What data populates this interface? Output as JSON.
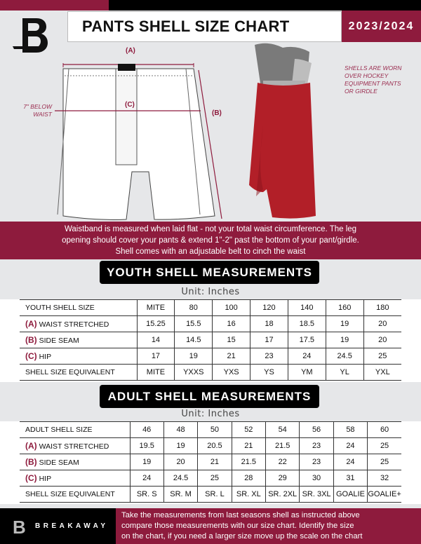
{
  "header": {
    "title": "PANTS SHELL SIZE CHART",
    "season": "2023/2024",
    "logo_text": "B"
  },
  "diagram": {
    "label_a": "(A)",
    "label_b": "(B)",
    "label_c": "(C)",
    "hip_note_1": "7\" BELOW",
    "hip_note_2": "WAIST",
    "photo_note": [
      "SHELLS ARE WORN",
      "OVER HOCKEY",
      "EQUIPMENT PANTS",
      "OR GIRDLE"
    ]
  },
  "band_text": [
    "Waistband is measured when laid flat - not your total waist circumference. The leg",
    "opening should cover your pants & extend 1\"-2\" past the bottom of your pant/girdle.",
    "Shell comes with an adjustable belt to cinch the waist"
  ],
  "youth": {
    "heading": "YOUTH SHELL MEASUREMENTS",
    "unit": "Unit: Inches",
    "rows": [
      {
        "prefix": "",
        "label": "YOUTH SHELL SIZE",
        "values": [
          "MITE",
          "80",
          "100",
          "120",
          "140",
          "160",
          "180"
        ]
      },
      {
        "prefix": "(A)",
        "label": "WAIST STRETCHED",
        "values": [
          "15.25",
          "15.5",
          "16",
          "18",
          "18.5",
          "19",
          "20"
        ]
      },
      {
        "prefix": "(B)",
        "label": "SIDE SEAM",
        "values": [
          "14",
          "14.5",
          "15",
          "17",
          "17.5",
          "19",
          "20"
        ]
      },
      {
        "prefix": "(C)",
        "label": "HIP",
        "values": [
          "17",
          "19",
          "21",
          "23",
          "24",
          "24.5",
          "25"
        ]
      },
      {
        "prefix": "",
        "label": "SHELL SIZE EQUIVALENT",
        "values": [
          "MITE",
          "YXXS",
          "YXS",
          "YS",
          "YM",
          "YL",
          "YXL"
        ]
      }
    ]
  },
  "adult": {
    "heading": "ADULT SHELL MEASUREMENTS",
    "unit": "Unit: Inches",
    "rows": [
      {
        "prefix": "",
        "label": "ADULT SHELL SIZE",
        "values": [
          "46",
          "48",
          "50",
          "52",
          "54",
          "56",
          "58",
          "60"
        ]
      },
      {
        "prefix": "(A)",
        "label": "WAIST STRETCHED",
        "values": [
          "19.5",
          "19",
          "20.5",
          "21",
          "21.5",
          "23",
          "24",
          "25"
        ]
      },
      {
        "prefix": "(B)",
        "label": "SIDE SEAM",
        "values": [
          "19",
          "20",
          "21",
          "21.5",
          "22",
          "23",
          "24",
          "25"
        ]
      },
      {
        "prefix": "(C)",
        "label": "HIP",
        "values": [
          "24",
          "24.5",
          "25",
          "28",
          "29",
          "30",
          "31",
          "32"
        ]
      },
      {
        "prefix": "",
        "label": "SHELL SIZE EQUIVALENT",
        "values": [
          "SR. S",
          "SR. M",
          "SR. L",
          "SR. XL",
          "SR. 2XL",
          "SR. 3XL",
          "GOALIE",
          "GOALIE+"
        ]
      }
    ]
  },
  "footer": {
    "brand": "BREAKAWAY",
    "text": [
      "Take the measurements from last seasons shell as instructed above",
      "compare those measurements  with our size chart. Identify the size",
      "on the chart, if you need a larger size move up the scale on the chart"
    ]
  },
  "colors": {
    "accent": "#8e1b3d",
    "dark": "#000000",
    "background": "#e6e7e9"
  }
}
